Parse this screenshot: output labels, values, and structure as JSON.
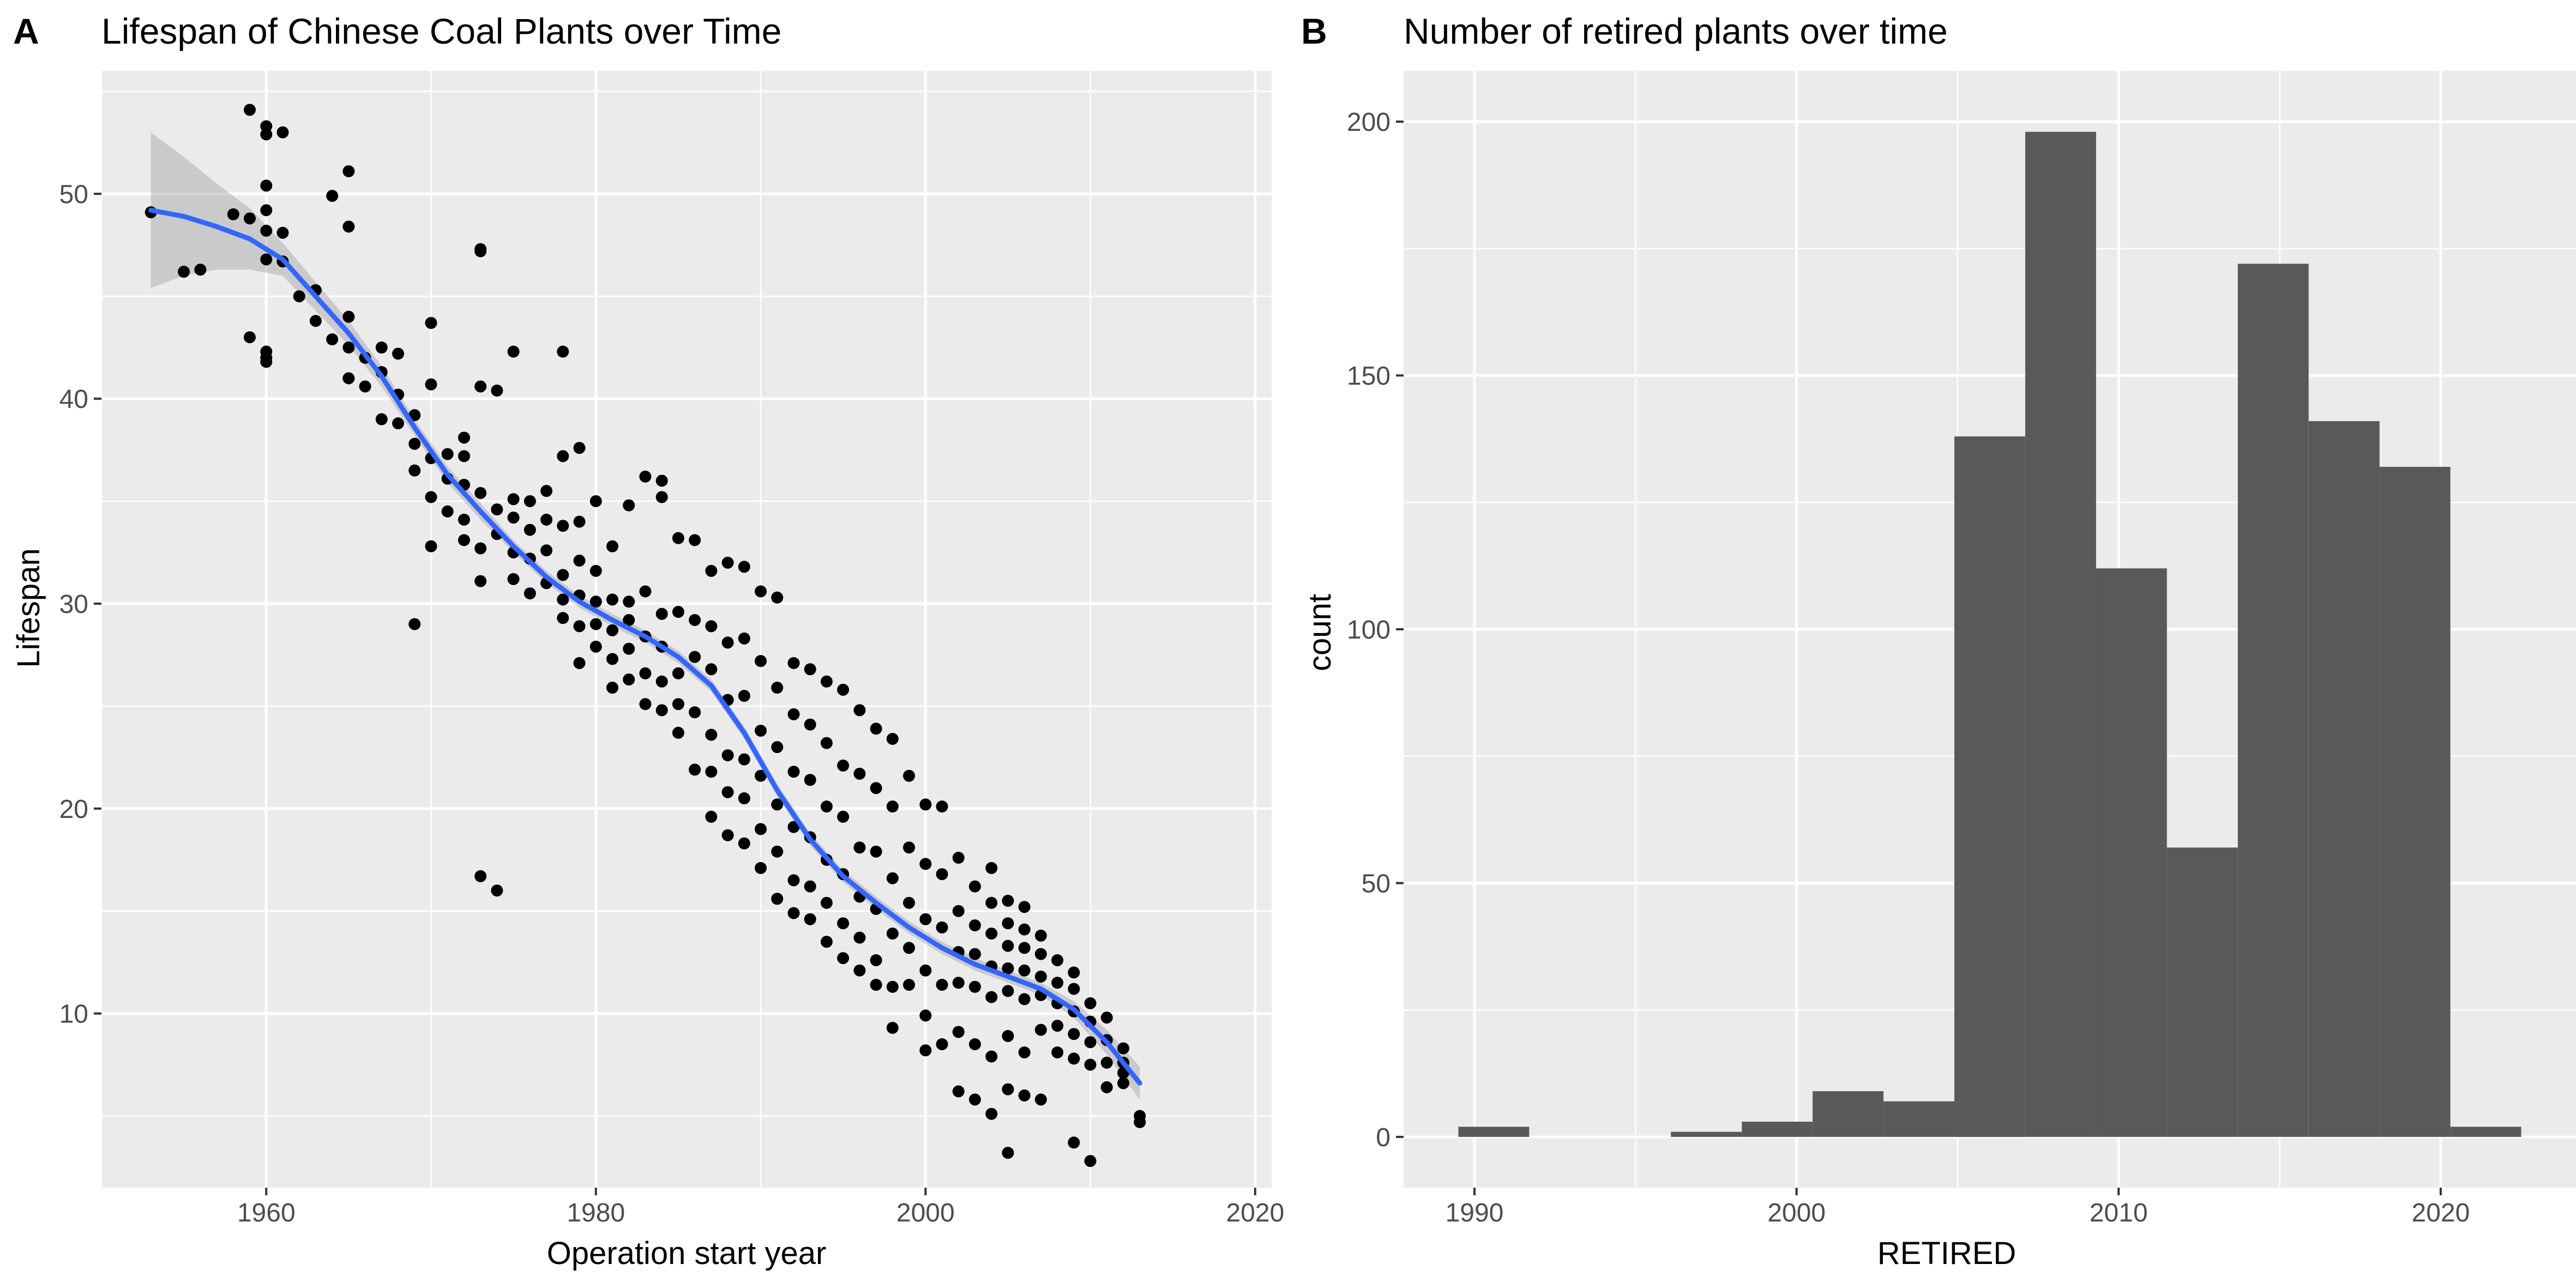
{
  "panels": {
    "a": {
      "tag": "A",
      "title": "Lifespan of Chinese Coal Plants over Time",
      "xlabel": "Operation start year",
      "ylabel": "Lifespan"
    },
    "b": {
      "tag": "B",
      "title": "Number of retired plants over time",
      "xlabel": "RETIRED",
      "ylabel": "count"
    }
  },
  "colors": {
    "panel_bg": "#ebebeb",
    "grid": "#ffffff",
    "points": "#000000",
    "smooth_line": "#3366ff",
    "ribbon": "#999999",
    "bars": "#595959",
    "tick_text": "#4d4d4d"
  },
  "chart_data": [
    {
      "type": "scatter",
      "title": "Lifespan of Chinese Coal Plants over Time",
      "xlabel": "Operation start year",
      "ylabel": "Lifespan",
      "xlim": [
        1950,
        2021
      ],
      "ylim": [
        1.5,
        56
      ],
      "xticks": [
        1960,
        1980,
        2000,
        2020
      ],
      "yticks": [
        10,
        20,
        30,
        40,
        50
      ],
      "grid": true,
      "legend": "none",
      "points": [
        [
          1953,
          49.1
        ],
        [
          1955,
          46.2
        ],
        [
          1956,
          46.3
        ],
        [
          1958,
          49
        ],
        [
          1959,
          54.1
        ],
        [
          1959,
          48.8
        ],
        [
          1959,
          43
        ],
        [
          1960,
          53.3
        ],
        [
          1960,
          52.9
        ],
        [
          1960,
          50.4
        ],
        [
          1960,
          49.2
        ],
        [
          1960,
          48.2
        ],
        [
          1960,
          46.8
        ],
        [
          1960,
          42.3
        ],
        [
          1960,
          42
        ],
        [
          1960,
          41.8
        ],
        [
          1961,
          53
        ],
        [
          1961,
          48.1
        ],
        [
          1961,
          46.7
        ],
        [
          1962,
          45
        ],
        [
          1963,
          45.3
        ],
        [
          1963,
          43.8
        ],
        [
          1964,
          49.9
        ],
        [
          1964,
          42.9
        ],
        [
          1965,
          51.1
        ],
        [
          1965,
          48.4
        ],
        [
          1965,
          44
        ],
        [
          1965,
          42.5
        ],
        [
          1965,
          41
        ],
        [
          1966,
          42
        ],
        [
          1966,
          40.6
        ],
        [
          1967,
          42.5
        ],
        [
          1967,
          41.3
        ],
        [
          1967,
          39
        ],
        [
          1968,
          42.2
        ],
        [
          1968,
          40.2
        ],
        [
          1968,
          38.8
        ],
        [
          1969,
          39.2
        ],
        [
          1969,
          37.8
        ],
        [
          1969,
          36.5
        ],
        [
          1969,
          29
        ],
        [
          1970,
          43.7
        ],
        [
          1970,
          40.7
        ],
        [
          1970,
          37.1
        ],
        [
          1970,
          35.2
        ],
        [
          1970,
          32.8
        ],
        [
          1971,
          37.3
        ],
        [
          1971,
          36.1
        ],
        [
          1971,
          34.5
        ],
        [
          1972,
          38.1
        ],
        [
          1972,
          37.2
        ],
        [
          1972,
          35.8
        ],
        [
          1972,
          34.1
        ],
        [
          1972,
          33.1
        ],
        [
          1973,
          47.3
        ],
        [
          1973,
          47.2
        ],
        [
          1973,
          40.6
        ],
        [
          1973,
          35.4
        ],
        [
          1973,
          32.7
        ],
        [
          1973,
          31.1
        ],
        [
          1973,
          16.7
        ],
        [
          1974,
          40.4
        ],
        [
          1974,
          34.6
        ],
        [
          1974,
          33.4
        ],
        [
          1974,
          16
        ],
        [
          1975,
          42.3
        ],
        [
          1975,
          35.1
        ],
        [
          1975,
          34.2
        ],
        [
          1975,
          32.5
        ],
        [
          1975,
          31.2
        ],
        [
          1976,
          35
        ],
        [
          1976,
          33.6
        ],
        [
          1976,
          32.2
        ],
        [
          1976,
          30.5
        ],
        [
          1977,
          35.5
        ],
        [
          1977,
          34.1
        ],
        [
          1977,
          32.6
        ],
        [
          1977,
          31
        ],
        [
          1978,
          42.3
        ],
        [
          1978,
          37.2
        ],
        [
          1978,
          33.8
        ],
        [
          1978,
          31.4
        ],
        [
          1978,
          30.2
        ],
        [
          1978,
          29.3
        ],
        [
          1979,
          37.6
        ],
        [
          1979,
          34
        ],
        [
          1979,
          32.1
        ],
        [
          1979,
          30.4
        ],
        [
          1979,
          28.9
        ],
        [
          1979,
          27.1
        ],
        [
          1980,
          35
        ],
        [
          1980,
          31.6
        ],
        [
          1980,
          30.1
        ],
        [
          1980,
          29
        ],
        [
          1980,
          27.9
        ],
        [
          1981,
          32.8
        ],
        [
          1981,
          30.2
        ],
        [
          1981,
          28.7
        ],
        [
          1981,
          27.3
        ],
        [
          1981,
          25.9
        ],
        [
          1982,
          34.8
        ],
        [
          1982,
          30.1
        ],
        [
          1982,
          29.2
        ],
        [
          1982,
          27.8
        ],
        [
          1982,
          26.3
        ],
        [
          1983,
          36.2
        ],
        [
          1983,
          30.6
        ],
        [
          1983,
          28.4
        ],
        [
          1983,
          26.6
        ],
        [
          1983,
          25.1
        ],
        [
          1984,
          36
        ],
        [
          1984,
          35.2
        ],
        [
          1984,
          29.5
        ],
        [
          1984,
          27.9
        ],
        [
          1984,
          26.2
        ],
        [
          1984,
          24.8
        ],
        [
          1985,
          33.2
        ],
        [
          1985,
          29.6
        ],
        [
          1985,
          26.6
        ],
        [
          1985,
          25.1
        ],
        [
          1985,
          23.7
        ],
        [
          1986,
          33.1
        ],
        [
          1986,
          29.2
        ],
        [
          1986,
          27.4
        ],
        [
          1986,
          24.7
        ],
        [
          1986,
          21.9
        ],
        [
          1987,
          31.6
        ],
        [
          1987,
          28.9
        ],
        [
          1987,
          26.8
        ],
        [
          1987,
          23.6
        ],
        [
          1987,
          21.8
        ],
        [
          1987,
          19.6
        ],
        [
          1988,
          32
        ],
        [
          1988,
          28.1
        ],
        [
          1988,
          25.3
        ],
        [
          1988,
          22.6
        ],
        [
          1988,
          20.8
        ],
        [
          1988,
          18.7
        ],
        [
          1989,
          31.8
        ],
        [
          1989,
          28.3
        ],
        [
          1989,
          25.5
        ],
        [
          1989,
          22.4
        ],
        [
          1989,
          20.5
        ],
        [
          1989,
          18.3
        ],
        [
          1990,
          30.6
        ],
        [
          1990,
          27.2
        ],
        [
          1990,
          23.8
        ],
        [
          1990,
          21.6
        ],
        [
          1990,
          19
        ],
        [
          1990,
          17.1
        ],
        [
          1991,
          30.3
        ],
        [
          1991,
          25.9
        ],
        [
          1991,
          23
        ],
        [
          1991,
          20.2
        ],
        [
          1991,
          17.9
        ],
        [
          1991,
          15.6
        ],
        [
          1992,
          27.1
        ],
        [
          1992,
          24.6
        ],
        [
          1992,
          21.8
        ],
        [
          1992,
          19.1
        ],
        [
          1992,
          16.5
        ],
        [
          1992,
          14.9
        ],
        [
          1993,
          26.8
        ],
        [
          1993,
          24.1
        ],
        [
          1993,
          21.4
        ],
        [
          1993,
          18.6
        ],
        [
          1993,
          16.2
        ],
        [
          1993,
          14.6
        ],
        [
          1994,
          26.2
        ],
        [
          1994,
          23.2
        ],
        [
          1994,
          20.1
        ],
        [
          1994,
          17.5
        ],
        [
          1994,
          15.4
        ],
        [
          1994,
          13.5
        ],
        [
          1995,
          25.8
        ],
        [
          1995,
          22.1
        ],
        [
          1995,
          19.6
        ],
        [
          1995,
          16.8
        ],
        [
          1995,
          14.4
        ],
        [
          1995,
          12.7
        ],
        [
          1996,
          24.8
        ],
        [
          1996,
          21.7
        ],
        [
          1996,
          18.1
        ],
        [
          1996,
          15.7
        ],
        [
          1996,
          13.7
        ],
        [
          1996,
          12.1
        ],
        [
          1997,
          23.9
        ],
        [
          1997,
          21
        ],
        [
          1997,
          17.9
        ],
        [
          1997,
          15.1
        ],
        [
          1997,
          12.6
        ],
        [
          1997,
          11.4
        ],
        [
          1998,
          23.4
        ],
        [
          1998,
          20.1
        ],
        [
          1998,
          16.6
        ],
        [
          1998,
          13.9
        ],
        [
          1998,
          11.3
        ],
        [
          1998,
          9.3
        ],
        [
          1999,
          21.6
        ],
        [
          1999,
          18.1
        ],
        [
          1999,
          15.4
        ],
        [
          1999,
          13.2
        ],
        [
          1999,
          11.4
        ],
        [
          2000,
          20.2
        ],
        [
          2000,
          17.3
        ],
        [
          2000,
          14.6
        ],
        [
          2000,
          12.1
        ],
        [
          2000,
          9.9
        ],
        [
          2000,
          8.2
        ],
        [
          2001,
          20.1
        ],
        [
          2001,
          16.8
        ],
        [
          2001,
          14.2
        ],
        [
          2001,
          11.4
        ],
        [
          2001,
          8.5
        ],
        [
          2002,
          17.6
        ],
        [
          2002,
          15
        ],
        [
          2002,
          13
        ],
        [
          2002,
          11.5
        ],
        [
          2002,
          9.1
        ],
        [
          2002,
          6.2
        ],
        [
          2003,
          16.2
        ],
        [
          2003,
          14.3
        ],
        [
          2003,
          12.9
        ],
        [
          2003,
          11.3
        ],
        [
          2003,
          8.5
        ],
        [
          2003,
          5.8
        ],
        [
          2004,
          17.1
        ],
        [
          2004,
          15.4
        ],
        [
          2004,
          13.9
        ],
        [
          2004,
          12.3
        ],
        [
          2004,
          10.8
        ],
        [
          2004,
          7.9
        ],
        [
          2004,
          5.1
        ],
        [
          2005,
          15.5
        ],
        [
          2005,
          14.4
        ],
        [
          2005,
          13.3
        ],
        [
          2005,
          12.2
        ],
        [
          2005,
          11.1
        ],
        [
          2005,
          8.9
        ],
        [
          2005,
          6.3
        ],
        [
          2005,
          3.2
        ],
        [
          2006,
          15.2
        ],
        [
          2006,
          14.1
        ],
        [
          2006,
          13.2
        ],
        [
          2006,
          12.1
        ],
        [
          2006,
          10.7
        ],
        [
          2006,
          8.1
        ],
        [
          2006,
          6
        ],
        [
          2007,
          13.8
        ],
        [
          2007,
          12.9
        ],
        [
          2007,
          11.8
        ],
        [
          2007,
          10.9
        ],
        [
          2007,
          9.2
        ],
        [
          2007,
          5.8
        ],
        [
          2008,
          12.6
        ],
        [
          2008,
          11.5
        ],
        [
          2008,
          10.5
        ],
        [
          2008,
          9.4
        ],
        [
          2008,
          8.1
        ],
        [
          2009,
          12
        ],
        [
          2009,
          11.2
        ],
        [
          2009,
          10.1
        ],
        [
          2009,
          9
        ],
        [
          2009,
          7.8
        ],
        [
          2009,
          3.7
        ],
        [
          2010,
          10.5
        ],
        [
          2010,
          9.6
        ],
        [
          2010,
          8.6
        ],
        [
          2010,
          7.5
        ],
        [
          2010,
          2.8
        ],
        [
          2011,
          9.8
        ],
        [
          2011,
          8.7
        ],
        [
          2011,
          7.6
        ],
        [
          2011,
          6.4
        ],
        [
          2012,
          8.3
        ],
        [
          2012,
          7.6
        ],
        [
          2012,
          7.1
        ],
        [
          2012,
          6.6
        ],
        [
          2013,
          5
        ],
        [
          2013,
          4.7
        ]
      ],
      "smooth": {
        "x": [
          1953,
          1955,
          1957,
          1959,
          1961,
          1963,
          1965,
          1967,
          1969,
          1971,
          1973,
          1975,
          1977,
          1979,
          1981,
          1983,
          1985,
          1987,
          1989,
          1991,
          1993,
          1995,
          1997,
          1999,
          2001,
          2003,
          2005,
          2007,
          2009,
          2011,
          2013
        ],
        "y": [
          49.2,
          48.9,
          48.4,
          47.8,
          46.8,
          45,
          43.2,
          41.1,
          38.6,
          36.3,
          34.5,
          32.8,
          31.3,
          30.1,
          29.2,
          28.4,
          27.4,
          26,
          23.7,
          20.9,
          18.5,
          16.7,
          15.4,
          14.2,
          13.2,
          12.4,
          11.8,
          11.2,
          10.2,
          8.6,
          6.6
        ],
        "lower": [
          45.4,
          46,
          46.3,
          46.3,
          46,
          44.3,
          42.6,
          40.6,
          38.2,
          35.9,
          34.1,
          32.5,
          31,
          29.8,
          28.9,
          28.1,
          27.1,
          25.7,
          23.4,
          20.6,
          18.2,
          16.4,
          15.1,
          13.9,
          12.9,
          12.1,
          11.5,
          10.9,
          9.8,
          8,
          5.8
        ],
        "upper": [
          53,
          51.8,
          50.5,
          49.3,
          47.6,
          45.7,
          43.8,
          41.6,
          39,
          36.7,
          34.9,
          33.1,
          31.6,
          30.4,
          29.5,
          28.7,
          27.7,
          26.3,
          24,
          21.2,
          18.8,
          17,
          15.7,
          14.5,
          13.5,
          12.7,
          12.1,
          11.5,
          10.6,
          9.2,
          7.4
        ]
      }
    },
    {
      "type": "bar",
      "title": "Number of retired plants over time",
      "xlabel": "RETIRED",
      "ylabel": "count",
      "xlim": [
        1987.8,
        2024.2
      ],
      "ylim": [
        -10,
        210
      ],
      "xticks": [
        1990,
        2000,
        2010,
        2020
      ],
      "yticks": [
        0,
        50,
        100,
        150,
        200
      ],
      "grid": true,
      "legend": "none",
      "bin_width": 2.2,
      "bin_start": 1989.5,
      "values": [
        2,
        0,
        0,
        1,
        3,
        9,
        7,
        138,
        198,
        112,
        57,
        172,
        141,
        132,
        2
      ]
    }
  ]
}
